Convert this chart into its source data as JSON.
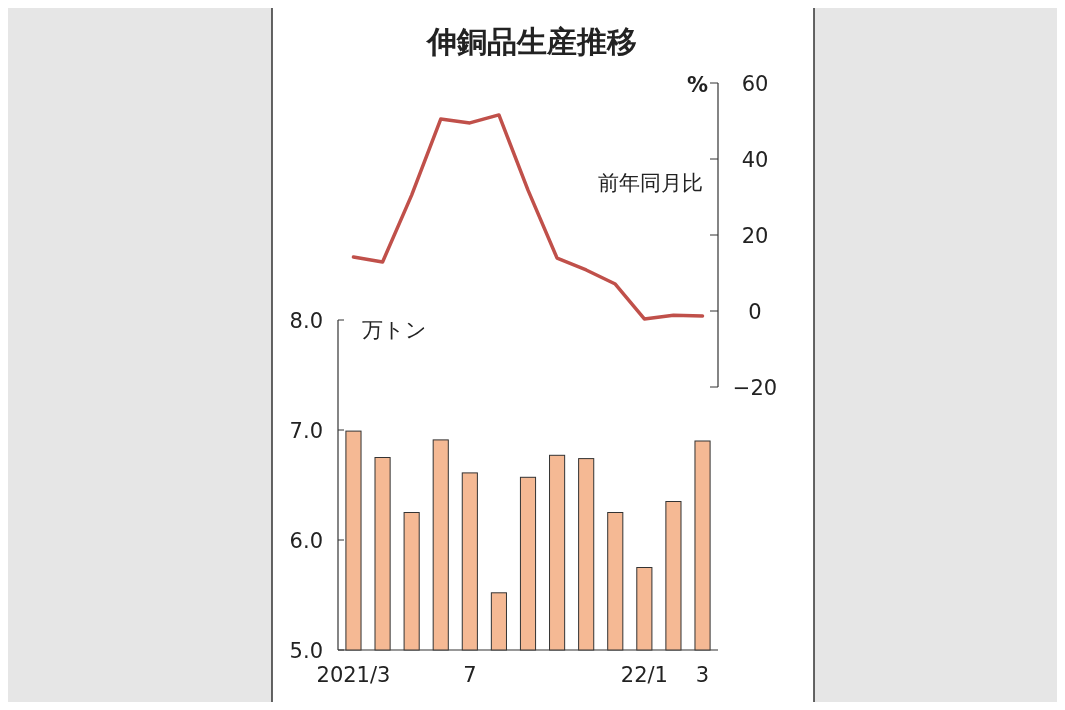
{
  "chart_data": [
    {
      "type": "line",
      "title": "伸銅品生産推移",
      "ylabel": "%",
      "annotations": [
        "前年同月比"
      ],
      "categories": [
        null,
        null,
        null,
        null,
        null,
        null,
        null,
        null,
        null,
        null,
        null,
        null,
        null
      ],
      "series": [
        {
          "color": "#c0504a",
          "values": [
            14.2,
            12.9,
            30.5,
            50.5,
            49.5,
            51.6,
            31.8,
            13.9,
            10.8,
            7.1,
            -2.1,
            -1.1,
            -1.3
          ]
        }
      ],
      "ylim": [
        -20,
        60
      ],
      "yticks": [
        {
          "value": -20,
          "label": "−20"
        },
        0,
        20,
        40,
        60
      ]
    },
    {
      "type": "bar",
      "ylabel": "万トン",
      "categories": [
        "2021/3",
        null,
        null,
        null,
        "7",
        null,
        null,
        null,
        null,
        null,
        "22/1",
        null,
        "3"
      ],
      "series": [
        {
          "color": "#f5b994",
          "values": [
            6.99,
            6.75,
            6.25,
            6.91,
            6.61,
            5.52,
            6.57,
            6.77,
            6.74,
            6.25,
            5.75,
            6.35,
            6.9
          ]
        }
      ],
      "ylim": [
        5,
        8
      ],
      "yticks": [
        {
          "value": 5,
          "label": "5.0"
        },
        {
          "value": 6,
          "label": "6.0"
        },
        {
          "value": 7,
          "label": "7.0"
        },
        {
          "value": 8,
          "label": "8.0"
        }
      ]
    }
  ]
}
